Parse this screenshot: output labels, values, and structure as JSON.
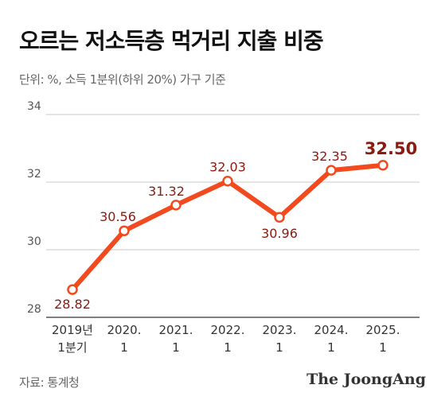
{
  "title": "오르는 저소득층 먹거리 지출 비중",
  "subtitle": "단위: %, 소득 1분위(하위 20%) 가구 기준",
  "source": "자료: 통계청",
  "brand": "The JoongAng",
  "colors": {
    "line": "#f24a1e",
    "label": "#8b1a10",
    "grid": "#c8c8c8",
    "axis": "#555555"
  },
  "chart_data": {
    "type": "line",
    "categories": [
      [
        "2019년",
        "1분기"
      ],
      [
        "2020.",
        "1"
      ],
      [
        "2021.",
        "1"
      ],
      [
        "2022.",
        "1"
      ],
      [
        "2023.",
        "1"
      ],
      [
        "2024.",
        "1"
      ],
      [
        "2025.",
        "1"
      ]
    ],
    "series": [
      {
        "values": [
          28.82,
          30.56,
          31.32,
          32.03,
          30.96,
          32.35,
          32.5
        ]
      }
    ],
    "data_labels": [
      "28.82",
      "30.56",
      "31.32",
      "32.03",
      "30.96",
      "32.35",
      "32.50"
    ],
    "yticks": [
      "28",
      "30",
      "32",
      "34"
    ],
    "ylim": [
      28,
      34
    ],
    "grid": true
  }
}
